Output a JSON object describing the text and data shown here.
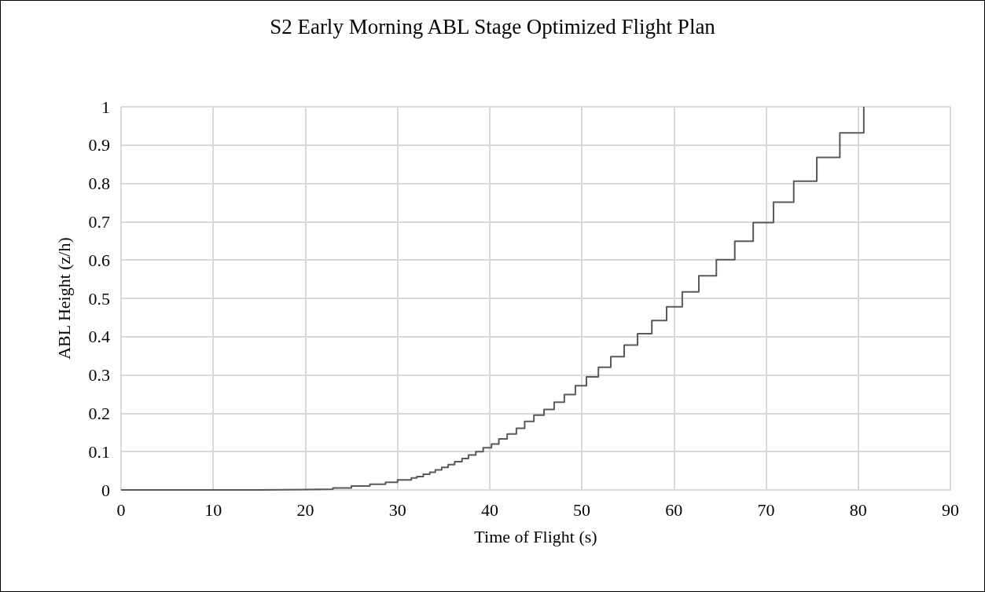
{
  "chart_data": {
    "type": "step",
    "title": "S2 Early Morning ABL Stage Optimized Flight Plan",
    "xlabel": "Time of Flight (s)",
    "ylabel": "ABL Height (z/h)",
    "x": [
      0,
      15,
      20,
      23,
      25,
      27,
      28.7,
      30,
      31.5,
      32.1,
      32.8,
      33.5,
      34.1,
      34.8,
      35.5,
      36.2,
      37.0,
      37.7,
      38.5,
      39.3,
      40.2,
      41.0,
      41.9,
      42.9,
      43.8,
      44.8,
      45.9,
      47.0,
      48.1,
      49.3,
      50.5,
      51.8,
      53.15,
      54.6,
      56.05,
      57.6,
      59.2,
      60.9,
      62.7,
      64.6,
      66.6,
      68.6,
      70.8,
      73.0,
      75.5,
      78.0,
      80.6
    ],
    "values": [
      0,
      0.001,
      0.002,
      0.005,
      0.01,
      0.015,
      0.02,
      0.026,
      0.031,
      0.035,
      0.041,
      0.046,
      0.052,
      0.059,
      0.066,
      0.074,
      0.082,
      0.091,
      0.1,
      0.11,
      0.12,
      0.133,
      0.146,
      0.161,
      0.179,
      0.195,
      0.21,
      0.229,
      0.249,
      0.272,
      0.295,
      0.32,
      0.348,
      0.378,
      0.408,
      0.442,
      0.478,
      0.517,
      0.559,
      0.601,
      0.649,
      0.698,
      0.751,
      0.806,
      0.868,
      0.932,
      1.0
    ],
    "color": "#595959",
    "line_style": "solid",
    "marker": "none",
    "grid": true,
    "xlim": [
      0,
      90
    ],
    "xticks": [
      0,
      10,
      20,
      30,
      40,
      50,
      60,
      70,
      80,
      90
    ],
    "ylim": [
      0,
      1
    ],
    "yticks": [
      0,
      0.1,
      0.2,
      0.3,
      0.4,
      0.5,
      0.6,
      0.7,
      0.8,
      0.9,
      1
    ]
  }
}
